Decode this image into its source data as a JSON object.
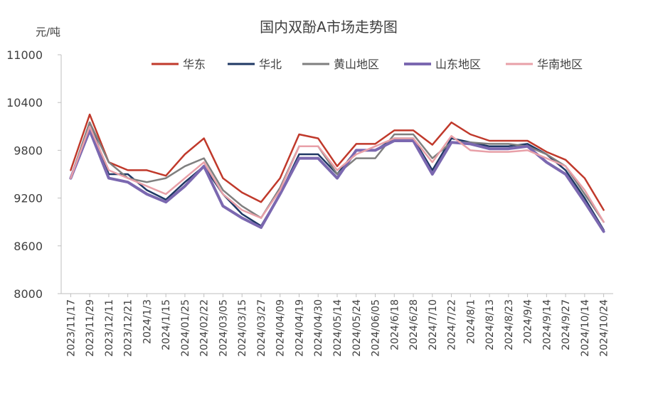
{
  "chart_data": {
    "type": "line",
    "title": "国内双酚A市场走势图",
    "ylabel": "元/吨",
    "xlabel": "",
    "ylim": [
      8000,
      11000
    ],
    "yticks": [
      "8000",
      "8600",
      "9200",
      "9800",
      "10400",
      "11000"
    ],
    "grid": false,
    "legend_position": "top",
    "categories": [
      "2023/11/17",
      "2023/11/29",
      "2023/12/11",
      "2023/12/21",
      "2024/1/3",
      "2024/1/15",
      "2024/01/25",
      "2024/02/22",
      "2024/03/05",
      "2024/03/15",
      "2024/03/27",
      "2024/04/09",
      "2024/04/19",
      "2024/04/30",
      "2024/05/14",
      "2024/05/24",
      "2024/06/05",
      "2024/6/18",
      "2024/6/28",
      "2024/7/10",
      "2024/7/22",
      "2024/8/1",
      "2024/8/13",
      "2024/8/23",
      "2024/9/4",
      "2024/9/14",
      "2024/9/27",
      "2024/10/14",
      "2024/10/24"
    ],
    "series": [
      {
        "name": "华东",
        "color": "#C0392B",
        "values": [
          9550,
          10250,
          9650,
          9550,
          9550,
          9480,
          9750,
          9950,
          9450,
          9270,
          9150,
          9450,
          10000,
          9950,
          9600,
          9880,
          9880,
          10050,
          10050,
          9870,
          10150,
          10000,
          9920,
          9920,
          9920,
          9780,
          9680,
          9450,
          9050
        ]
      },
      {
        "name": "华北",
        "color": "#1F3864",
        "values": [
          9450,
          10150,
          9500,
          9500,
          9300,
          9180,
          9400,
          9600,
          9250,
          9000,
          8850,
          9250,
          9750,
          9750,
          9500,
          9800,
          9800,
          9950,
          9950,
          9550,
          9950,
          9900,
          9850,
          9850,
          9880,
          9750,
          9550,
          9200,
          8800
        ]
      },
      {
        "name": "黄山地区",
        "color": "#7F7F7F",
        "values": [
          9450,
          10150,
          9650,
          9450,
          9400,
          9450,
          9600,
          9700,
          9300,
          9100,
          8950,
          9330,
          9850,
          9850,
          9500,
          9700,
          9700,
          10000,
          10000,
          9700,
          9900,
          9900,
          9880,
          9880,
          9850,
          9750,
          9600,
          9250,
          8900
        ]
      },
      {
        "name": "山东地区",
        "color": "#7B68B0",
        "values": [
          9450,
          10050,
          9450,
          9400,
          9250,
          9150,
          9350,
          9600,
          9100,
          8950,
          8830,
          9250,
          9700,
          9700,
          9450,
          9800,
          9800,
          9920,
          9920,
          9500,
          9900,
          9880,
          9820,
          9820,
          9850,
          9650,
          9500,
          9150,
          8780
        ]
      },
      {
        "name": "华南地区",
        "color": "#E8A0A8",
        "values": [
          9450,
          10100,
          9550,
          9450,
          9350,
          9250,
          9450,
          9650,
          9250,
          9050,
          8950,
          9300,
          9850,
          9850,
          9550,
          9750,
          9850,
          9950,
          9950,
          9650,
          9980,
          9800,
          9780,
          9780,
          9800,
          9700,
          9600,
          9300,
          8900
        ]
      }
    ]
  }
}
